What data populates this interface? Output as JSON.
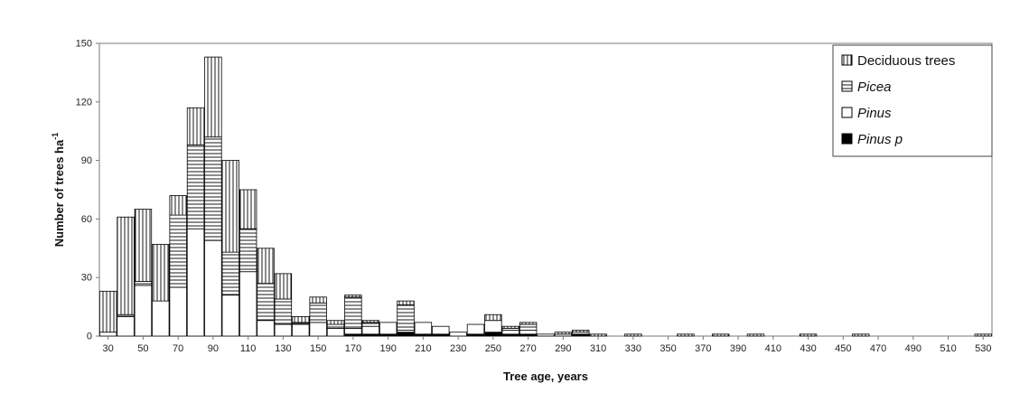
{
  "chart_data": {
    "type": "bar",
    "stacked": true,
    "xlabel": "Tree age, years",
    "ylabel": "Number of trees ha",
    "ylabel_sup": "-1",
    "ylim": [
      0,
      150
    ],
    "yticks": [
      0,
      30,
      60,
      90,
      120,
      150
    ],
    "x": [
      30,
      40,
      50,
      60,
      70,
      80,
      90,
      100,
      110,
      120,
      130,
      140,
      150,
      160,
      170,
      180,
      190,
      200,
      210,
      220,
      230,
      240,
      250,
      260,
      270,
      280,
      290,
      300,
      310,
      320,
      330,
      340,
      350,
      360,
      370,
      380,
      390,
      400,
      410,
      420,
      430,
      440,
      450,
      460,
      470,
      480,
      490,
      500,
      510,
      520,
      530
    ],
    "xtick_labels": [
      "30",
      "50",
      "70",
      "90",
      "110",
      "130",
      "150",
      "170",
      "190",
      "210",
      "230",
      "250",
      "270",
      "290",
      "310",
      "330",
      "350",
      "370",
      "390",
      "410",
      "430",
      "450",
      "470",
      "490",
      "510",
      "530"
    ],
    "legend_position": "top-right",
    "series": [
      {
        "name": "Pinus p",
        "pattern": "solid",
        "values": [
          0,
          0,
          0,
          0,
          0,
          0,
          0,
          0,
          0,
          0,
          0,
          0,
          0,
          0,
          1,
          1,
          1,
          2,
          1,
          1,
          0,
          1,
          2,
          1,
          1,
          0,
          0,
          1,
          0,
          0,
          0,
          0,
          0,
          0,
          0,
          0,
          0,
          0,
          0,
          0,
          0,
          0,
          0,
          0,
          0,
          0,
          0,
          0,
          0,
          0,
          0
        ]
      },
      {
        "name": "Pinus",
        "pattern": "white",
        "values": [
          2,
          10,
          26,
          18,
          25,
          55,
          49,
          21,
          33,
          8,
          6,
          6,
          7,
          4,
          3,
          4,
          6,
          1,
          6,
          4,
          2,
          5,
          6,
          2,
          2,
          1,
          1,
          0,
          0,
          0,
          0,
          0,
          0,
          0,
          0,
          0,
          0,
          0,
          0,
          0,
          0,
          0,
          0,
          0,
          0,
          0,
          0,
          0,
          0,
          0,
          0
        ]
      },
      {
        "name": "Picea",
        "pattern": "horizontal",
        "values": [
          0,
          1,
          2,
          0,
          37,
          43,
          53,
          22,
          22,
          19,
          13,
          1,
          10,
          2,
          16,
          2,
          0,
          13,
          0,
          0,
          0,
          0,
          0,
          1,
          3,
          0,
          0,
          1,
          0,
          0,
          0,
          0,
          0,
          0,
          0,
          0,
          0,
          0,
          0,
          0,
          0,
          0,
          0,
          0,
          0,
          0,
          0,
          0,
          0,
          0,
          0
        ]
      },
      {
        "name": "Deciduous trees",
        "pattern": "vertical",
        "values": [
          21,
          50,
          37,
          29,
          10,
          19,
          41,
          47,
          20,
          18,
          13,
          3,
          3,
          2,
          1,
          1,
          0,
          2,
          0,
          0,
          0,
          0,
          3,
          1,
          1,
          0,
          1,
          1,
          1,
          0,
          1,
          0,
          0,
          1,
          0,
          1,
          0,
          1,
          0,
          0,
          1,
          0,
          0,
          1,
          0,
          0,
          0,
          0,
          0,
          0,
          1
        ]
      }
    ],
    "legend_order": [
      "Deciduous trees",
      "Picea",
      "Pinus",
      "Pinus p"
    ],
    "legend_italic": {
      "Deciduous trees": false,
      "Picea": true,
      "Pinus": true,
      "Pinus p": true
    }
  }
}
